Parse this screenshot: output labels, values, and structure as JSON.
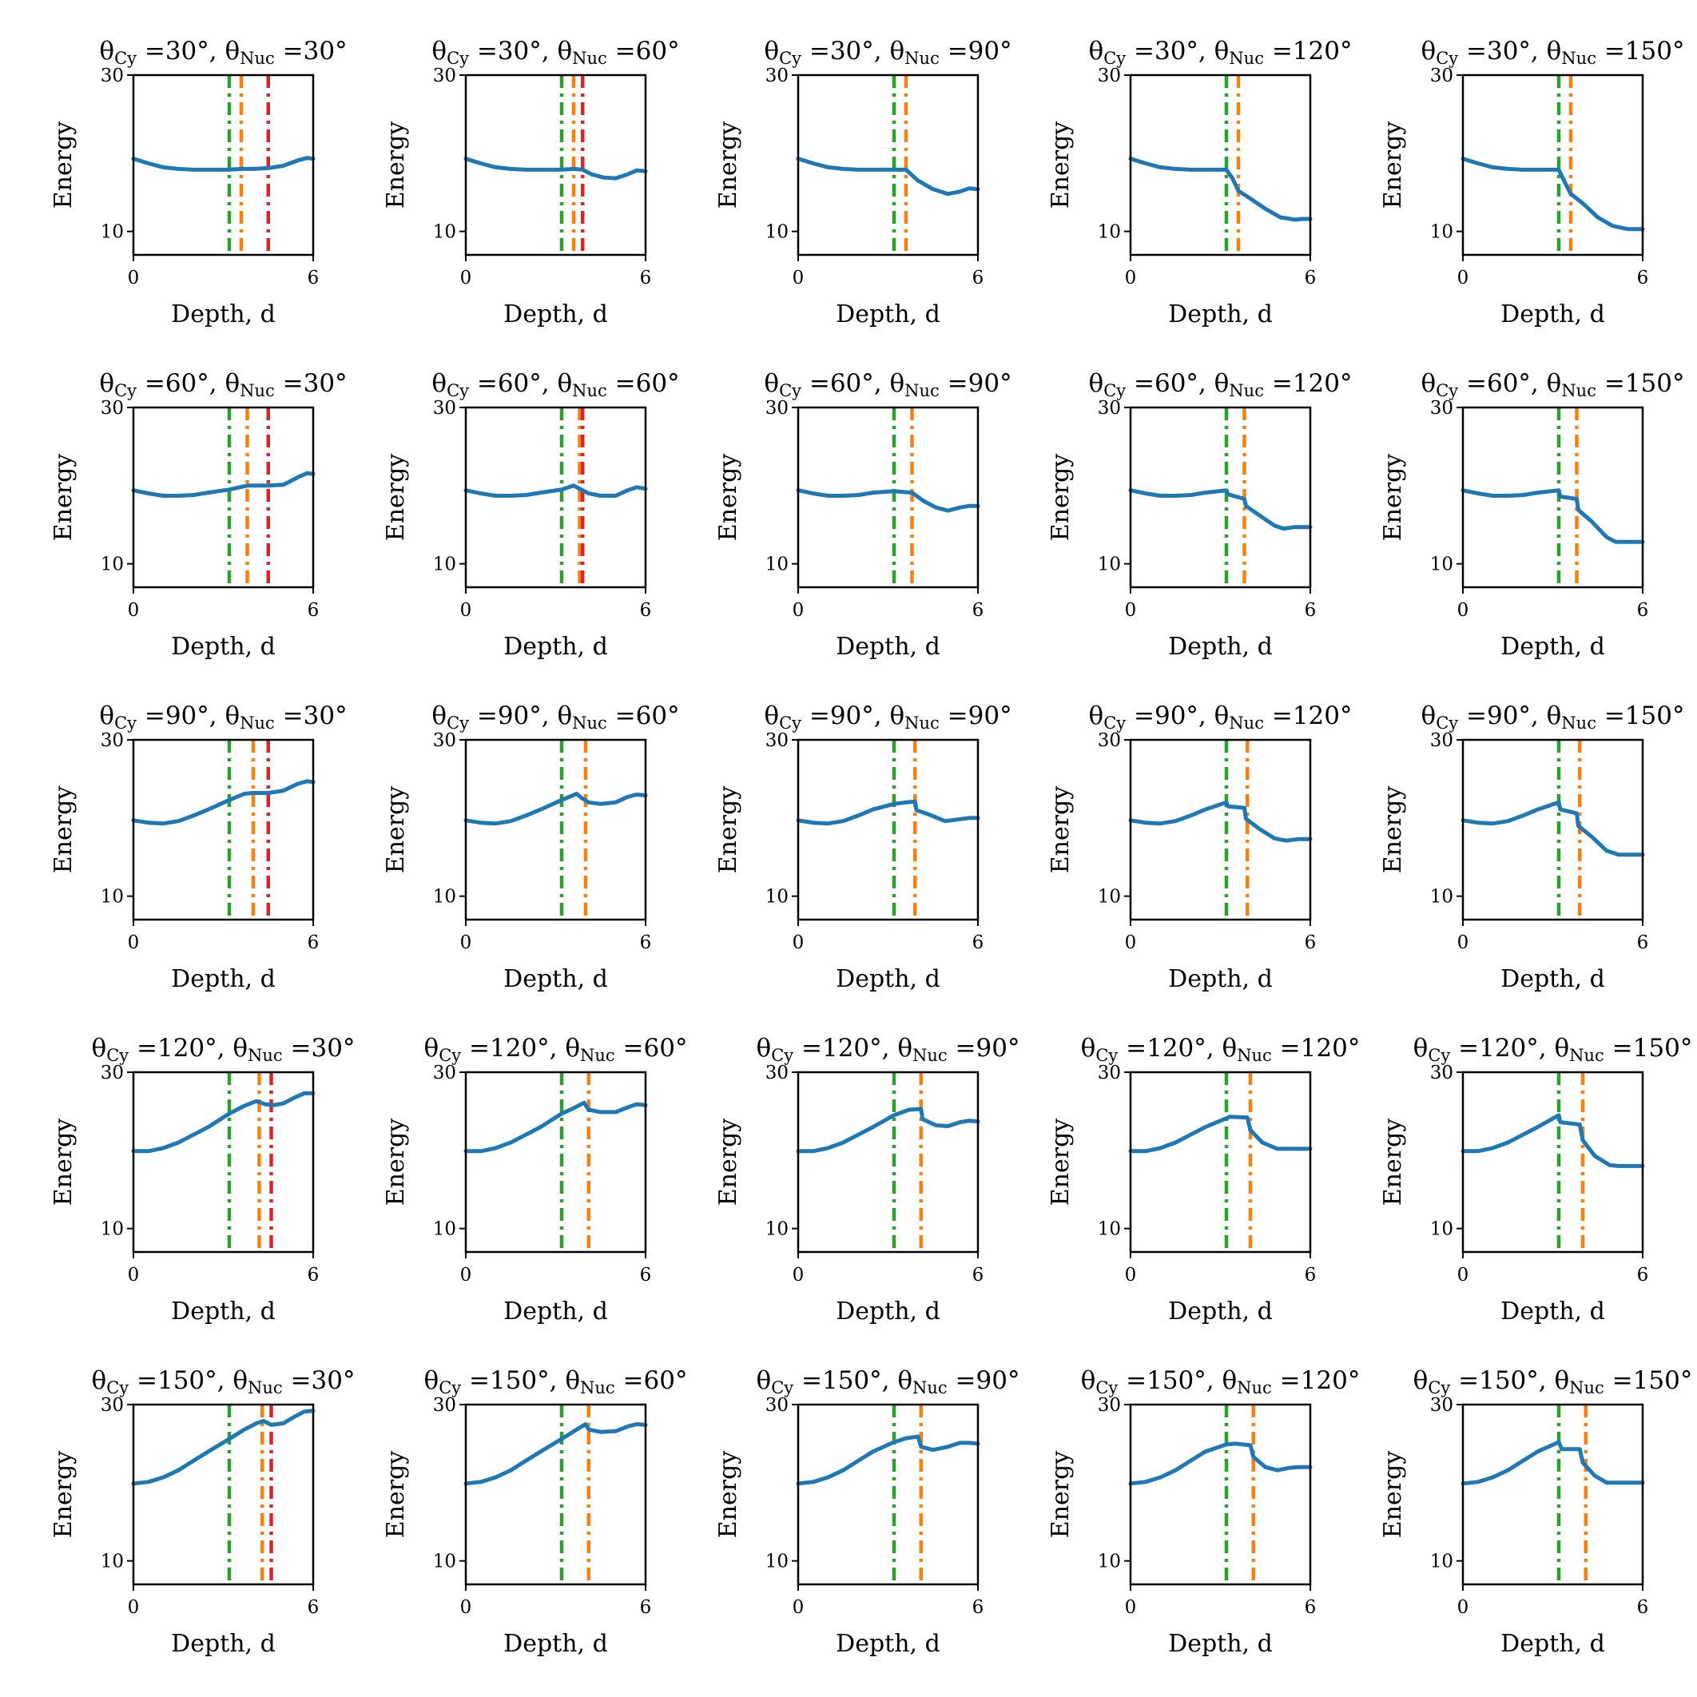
{
  "chart_data": {
    "type": "line",
    "xlabel": "Depth, d",
    "ylabel": "Energy",
    "xlim": [
      0,
      6
    ],
    "ylim": [
      7,
      30
    ],
    "xticks": [
      0,
      6
    ],
    "yticks": [
      10,
      30
    ],
    "colors": {
      "curve": "#1f77b4",
      "green": "#2ca02c",
      "orange": "#ff7f0e",
      "red": "#d62728"
    },
    "theta_cy": [
      "30",
      "60",
      "90",
      "120",
      "150"
    ],
    "theta_nuc": [
      "30",
      "60",
      "90",
      "120",
      "150"
    ],
    "panels": [
      {
        "row": 0,
        "col": 0,
        "title": "θCy =30°, θNuc =30°",
        "vlines": {
          "green": 3.2,
          "orange": 3.6,
          "red": 4.5
        },
        "x": [
          0,
          0.5,
          1,
          1.5,
          2,
          2.5,
          3.2,
          3.6,
          4,
          4.5,
          5,
          5.5,
          5.8,
          6
        ],
        "y": [
          19.3,
          18.7,
          18.2,
          18.0,
          17.9,
          17.9,
          17.9,
          18.0,
          18.0,
          18.1,
          18.4,
          19.1,
          19.4,
          19.3
        ]
      },
      {
        "row": 0,
        "col": 1,
        "title": "θCy =30°, θNuc =60°",
        "vlines": {
          "green": 3.2,
          "orange": 3.6,
          "red": 3.9
        },
        "x": [
          0,
          0.5,
          1,
          1.5,
          2,
          2.5,
          3.2,
          3.6,
          3.9,
          4.2,
          4.6,
          5,
          5.4,
          5.7,
          6
        ],
        "y": [
          19.3,
          18.7,
          18.2,
          18.0,
          17.9,
          17.9,
          17.9,
          18.0,
          17.9,
          17.3,
          16.9,
          16.8,
          17.3,
          17.8,
          17.7
        ]
      },
      {
        "row": 0,
        "col": 2,
        "title": "θCy =30°, θNuc =90°",
        "vlines": {
          "green": 3.2,
          "orange": 3.6
        },
        "x": [
          0,
          0.5,
          1,
          1.5,
          2,
          2.5,
          3.2,
          3.6,
          4,
          4.5,
          5,
          5.4,
          5.7,
          6
        ],
        "y": [
          19.3,
          18.7,
          18.2,
          18.0,
          17.9,
          17.9,
          17.9,
          17.9,
          16.5,
          15.4,
          14.8,
          15.1,
          15.5,
          15.4
        ]
      },
      {
        "row": 0,
        "col": 3,
        "title": "θCy =30°, θNuc =120°",
        "vlines": {
          "green": 3.2,
          "orange": 3.6
        },
        "x": [
          0,
          0.5,
          1,
          1.5,
          2,
          2.5,
          3.2,
          3.4,
          3.6,
          4,
          4.5,
          5,
          5.5,
          5.7,
          6
        ],
        "y": [
          19.3,
          18.7,
          18.2,
          18.0,
          17.9,
          17.9,
          17.9,
          16.8,
          15.2,
          14.2,
          12.9,
          11.8,
          11.5,
          11.6,
          11.6
        ]
      },
      {
        "row": 0,
        "col": 4,
        "title": "θCy =30°, θNuc =150°",
        "vlines": {
          "green": 3.2,
          "orange": 3.6
        },
        "x": [
          0,
          0.5,
          1,
          1.5,
          2,
          2.5,
          3.2,
          3.4,
          3.6,
          4,
          4.5,
          5,
          5.5,
          5.7,
          6
        ],
        "y": [
          19.3,
          18.7,
          18.2,
          18.0,
          17.9,
          17.9,
          17.9,
          16.3,
          14.8,
          13.6,
          11.8,
          10.7,
          10.3,
          10.3,
          10.3
        ]
      },
      {
        "row": 1,
        "col": 0,
        "title": "θCy =60°, θNuc =30°",
        "vlines": {
          "green": 3.2,
          "orange": 3.8,
          "red": 4.5
        },
        "x": [
          0,
          0.5,
          1,
          1.5,
          2,
          2.5,
          3.2,
          3.8,
          4.1,
          4.5,
          5,
          5.5,
          5.8,
          6
        ],
        "y": [
          19.4,
          19.0,
          18.7,
          18.7,
          18.8,
          19.1,
          19.5,
          20.0,
          20.0,
          20.0,
          20.1,
          21.1,
          21.6,
          21.5
        ]
      },
      {
        "row": 1,
        "col": 1,
        "title": "θCy =60°, θNuc =60°",
        "vlines": {
          "green": 3.2,
          "orange": 3.8,
          "red": 3.9
        },
        "x": [
          0,
          0.5,
          1,
          1.5,
          2,
          2.5,
          3.2,
          3.6,
          3.8,
          4.1,
          4.5,
          5,
          5.4,
          5.7,
          6
        ],
        "y": [
          19.4,
          19.0,
          18.7,
          18.7,
          18.8,
          19.1,
          19.5,
          20.0,
          19.6,
          19.0,
          18.7,
          18.7,
          19.4,
          19.8,
          19.6
        ]
      },
      {
        "row": 1,
        "col": 2,
        "title": "θCy =60°, θNuc =90°",
        "vlines": {
          "green": 3.2,
          "orange": 3.8
        },
        "x": [
          0,
          0.5,
          1,
          1.5,
          2,
          2.5,
          3.2,
          3.5,
          3.8,
          4.2,
          4.6,
          5,
          5.4,
          5.7,
          6
        ],
        "y": [
          19.4,
          19.0,
          18.7,
          18.7,
          18.8,
          19.1,
          19.3,
          19.2,
          19.1,
          18.0,
          17.2,
          16.8,
          17.2,
          17.4,
          17.4
        ]
      },
      {
        "row": 1,
        "col": 3,
        "title": "θCy =60°, θNuc =120°",
        "vlines": {
          "green": 3.2,
          "orange": 3.8
        },
        "x": [
          0,
          0.5,
          1,
          1.5,
          2,
          2.5,
          3.2,
          3.25,
          3.8,
          3.85,
          4.3,
          4.8,
          5.1,
          5.5,
          6
        ],
        "y": [
          19.4,
          19.0,
          18.7,
          18.7,
          18.8,
          19.1,
          19.4,
          18.9,
          18.3,
          17.4,
          16.2,
          14.9,
          14.5,
          14.7,
          14.7
        ]
      },
      {
        "row": 1,
        "col": 4,
        "title": "θCy =60°, θNuc =150°",
        "vlines": {
          "green": 3.2,
          "orange": 3.8
        },
        "x": [
          0,
          0.5,
          1,
          1.5,
          2,
          2.5,
          3.2,
          3.25,
          3.8,
          3.85,
          4.3,
          4.8,
          5.1,
          5.5,
          6
        ],
        "y": [
          19.4,
          19.0,
          18.7,
          18.7,
          18.8,
          19.1,
          19.4,
          18.6,
          18.3,
          16.9,
          15.4,
          13.4,
          12.8,
          12.8,
          12.8
        ]
      },
      {
        "row": 2,
        "col": 0,
        "title": "θCy =90°, θNuc =30°",
        "vlines": {
          "green": 3.2,
          "orange": 4.0,
          "red": 4.5
        },
        "x": [
          0,
          0.5,
          1,
          1.5,
          2,
          2.5,
          3.2,
          3.7,
          4,
          4.5,
          5,
          5.5,
          5.8,
          6
        ],
        "y": [
          19.7,
          19.4,
          19.3,
          19.6,
          20.3,
          21.1,
          22.3,
          23.1,
          23.2,
          23.2,
          23.5,
          24.4,
          24.7,
          24.6
        ]
      },
      {
        "row": 2,
        "col": 1,
        "title": "θCy =90°, θNuc =60°",
        "vlines": {
          "green": 3.2,
          "orange": 4.0
        },
        "x": [
          0,
          0.5,
          1,
          1.5,
          2,
          2.5,
          3.2,
          3.7,
          3.85,
          4.1,
          4.5,
          5,
          5.4,
          5.7,
          6
        ],
        "y": [
          19.7,
          19.4,
          19.3,
          19.6,
          20.3,
          21.1,
          22.3,
          23.1,
          22.6,
          22.0,
          21.8,
          22.0,
          22.7,
          23.0,
          22.9
        ]
      },
      {
        "row": 2,
        "col": 2,
        "title": "θCy =90°, θNuc =90°",
        "vlines": {
          "green": 3.2,
          "orange": 3.9
        },
        "x": [
          0,
          0.5,
          1,
          1.5,
          2,
          2.5,
          3.2,
          3.6,
          3.9,
          3.95,
          4.4,
          4.9,
          5.3,
          5.7,
          6
        ],
        "y": [
          19.7,
          19.4,
          19.3,
          19.6,
          20.3,
          21.1,
          21.8,
          22.0,
          22.1,
          21.0,
          20.4,
          19.6,
          19.8,
          20.0,
          20.0
        ]
      },
      {
        "row": 2,
        "col": 3,
        "title": "θCy =90°, θNuc =120°",
        "vlines": {
          "green": 3.2,
          "orange": 3.9
        },
        "x": [
          0,
          0.5,
          1,
          1.5,
          2,
          2.5,
          3.2,
          3.25,
          3.8,
          3.85,
          4.3,
          4.8,
          5.2,
          5.6,
          6
        ],
        "y": [
          19.7,
          19.4,
          19.3,
          19.6,
          20.3,
          21.1,
          22.0,
          21.5,
          21.3,
          19.9,
          18.6,
          17.4,
          17.1,
          17.3,
          17.3
        ]
      },
      {
        "row": 2,
        "col": 4,
        "title": "θCy =90°, θNuc =150°",
        "vlines": {
          "green": 3.2,
          "orange": 3.9
        },
        "x": [
          0,
          0.5,
          1,
          1.5,
          2,
          2.5,
          3.2,
          3.25,
          3.8,
          3.85,
          4.3,
          4.8,
          5.2,
          5.6,
          6
        ],
        "y": [
          19.7,
          19.4,
          19.3,
          19.6,
          20.3,
          21.1,
          22.0,
          21.1,
          20.6,
          19.0,
          17.6,
          15.8,
          15.3,
          15.3,
          15.3
        ]
      },
      {
        "row": 3,
        "col": 0,
        "title": "θCy =120°, θNuc =30°",
        "vlines": {
          "green": 3.2,
          "orange": 4.2,
          "red": 4.6
        },
        "x": [
          0,
          0.5,
          1,
          1.5,
          2,
          2.5,
          3.2,
          3.7,
          4.1,
          4.4,
          4.7,
          5,
          5.4,
          5.7,
          6
        ],
        "y": [
          19.9,
          19.9,
          20.3,
          21.0,
          22.0,
          23.0,
          24.7,
          25.7,
          26.3,
          25.9,
          25.8,
          26.0,
          26.8,
          27.3,
          27.3
        ]
      },
      {
        "row": 3,
        "col": 1,
        "title": "θCy =120°, θNuc =60°",
        "vlines": {
          "green": 3.2,
          "orange": 4.1
        },
        "x": [
          0,
          0.5,
          1,
          1.5,
          2,
          2.5,
          3.2,
          3.6,
          3.95,
          4.1,
          4.5,
          5,
          5.4,
          5.7,
          6
        ],
        "y": [
          19.9,
          19.9,
          20.3,
          21.0,
          22.0,
          23.0,
          24.7,
          25.4,
          26.1,
          25.2,
          24.9,
          24.9,
          25.5,
          25.9,
          25.8
        ]
      },
      {
        "row": 3,
        "col": 2,
        "title": "θCy =120°, θNuc =90°",
        "vlines": {
          "green": 3.2,
          "orange": 4.1
        },
        "x": [
          0,
          0.5,
          1,
          1.5,
          2,
          2.5,
          3.2,
          3.7,
          4.1,
          4.15,
          4.6,
          5,
          5.4,
          5.7,
          6
        ],
        "y": [
          19.9,
          19.9,
          20.3,
          21.0,
          22.0,
          23.0,
          24.5,
          25.2,
          25.3,
          24.0,
          23.2,
          23.1,
          23.6,
          23.8,
          23.7
        ]
      },
      {
        "row": 3,
        "col": 3,
        "title": "θCy =120°, θNuc =120°",
        "vlines": {
          "green": 3.2,
          "orange": 4.0
        },
        "x": [
          0,
          0.5,
          1,
          1.5,
          2,
          2.5,
          3.2,
          3.3,
          3.9,
          4.0,
          4.4,
          4.9,
          5.3,
          5.6,
          6
        ],
        "y": [
          19.9,
          19.9,
          20.3,
          21.0,
          22.0,
          23.0,
          24.1,
          24.3,
          24.2,
          22.6,
          21.0,
          20.2,
          20.2,
          20.2,
          20.2
        ]
      },
      {
        "row": 3,
        "col": 4,
        "title": "θCy =120°, θNuc =150°",
        "vlines": {
          "green": 3.2,
          "orange": 4.0
        },
        "x": [
          0,
          0.5,
          1,
          1.5,
          2,
          2.5,
          3.2,
          3.25,
          3.9,
          4.0,
          4.4,
          4.9,
          5.2,
          5.6,
          6
        ],
        "y": [
          19.9,
          19.9,
          20.3,
          21.0,
          22.0,
          23.0,
          24.5,
          23.6,
          23.3,
          21.3,
          19.3,
          18.1,
          18.0,
          18.0,
          18.0
        ]
      },
      {
        "row": 4,
        "col": 0,
        "title": "θCy =150°, θNuc =30°",
        "vlines": {
          "green": 3.2,
          "orange": 4.3,
          "red": 4.6
        },
        "x": [
          0,
          0.5,
          1,
          1.5,
          2,
          2.5,
          3.2,
          3.7,
          4.1,
          4.35,
          4.6,
          5,
          5.4,
          5.7,
          6
        ],
        "y": [
          19.9,
          20.1,
          20.7,
          21.6,
          22.8,
          24.0,
          25.6,
          26.8,
          27.6,
          27.9,
          27.4,
          27.6,
          28.5,
          29.1,
          29.2
        ]
      },
      {
        "row": 4,
        "col": 1,
        "title": "θCy =150°, θNuc =60°",
        "vlines": {
          "green": 3.2,
          "orange": 4.1
        },
        "x": [
          0,
          0.5,
          1,
          1.5,
          2,
          2.5,
          3.2,
          3.7,
          4.0,
          4.1,
          4.5,
          5,
          5.4,
          5.7,
          6
        ],
        "y": [
          19.9,
          20.1,
          20.7,
          21.6,
          22.8,
          24.0,
          25.6,
          26.8,
          27.5,
          26.8,
          26.5,
          26.6,
          27.2,
          27.5,
          27.4
        ]
      },
      {
        "row": 4,
        "col": 2,
        "title": "θCy =150°, θNuc =90°",
        "vlines": {
          "green": 3.2,
          "orange": 4.1
        },
        "x": [
          0,
          0.5,
          1,
          1.5,
          2,
          2.5,
          3.2,
          3.6,
          4.0,
          4.1,
          4.5,
          5,
          5.4,
          5.7,
          6
        ],
        "y": [
          19.9,
          20.1,
          20.7,
          21.6,
          22.8,
          24.0,
          25.2,
          25.7,
          25.9,
          24.6,
          24.2,
          24.6,
          25.1,
          25.1,
          25.0
        ]
      },
      {
        "row": 4,
        "col": 3,
        "title": "θCy =150°, θNuc =120°",
        "vlines": {
          "green": 3.2,
          "orange": 4.1
        },
        "x": [
          0,
          0.5,
          1,
          1.5,
          2,
          2.5,
          3.2,
          3.5,
          4.0,
          4.1,
          4.5,
          4.9,
          5.3,
          5.6,
          6
        ],
        "y": [
          19.9,
          20.1,
          20.7,
          21.6,
          22.8,
          24.0,
          24.9,
          25.0,
          24.8,
          23.3,
          22.0,
          21.6,
          21.9,
          22.0,
          22.0
        ]
      },
      {
        "row": 4,
        "col": 4,
        "title": "θCy =150°, θNuc =150°",
        "vlines": {
          "green": 3.2,
          "orange": 4.1
        },
        "x": [
          0,
          0.5,
          1,
          1.5,
          2,
          2.5,
          3.2,
          3.3,
          3.9,
          4.0,
          4.4,
          4.8,
          5.2,
          5.6,
          6
        ],
        "y": [
          19.9,
          20.1,
          20.7,
          21.6,
          22.8,
          24.0,
          25.2,
          24.3,
          24.3,
          22.6,
          20.9,
          20.0,
          20.0,
          20.0,
          20.0
        ]
      }
    ]
  }
}
